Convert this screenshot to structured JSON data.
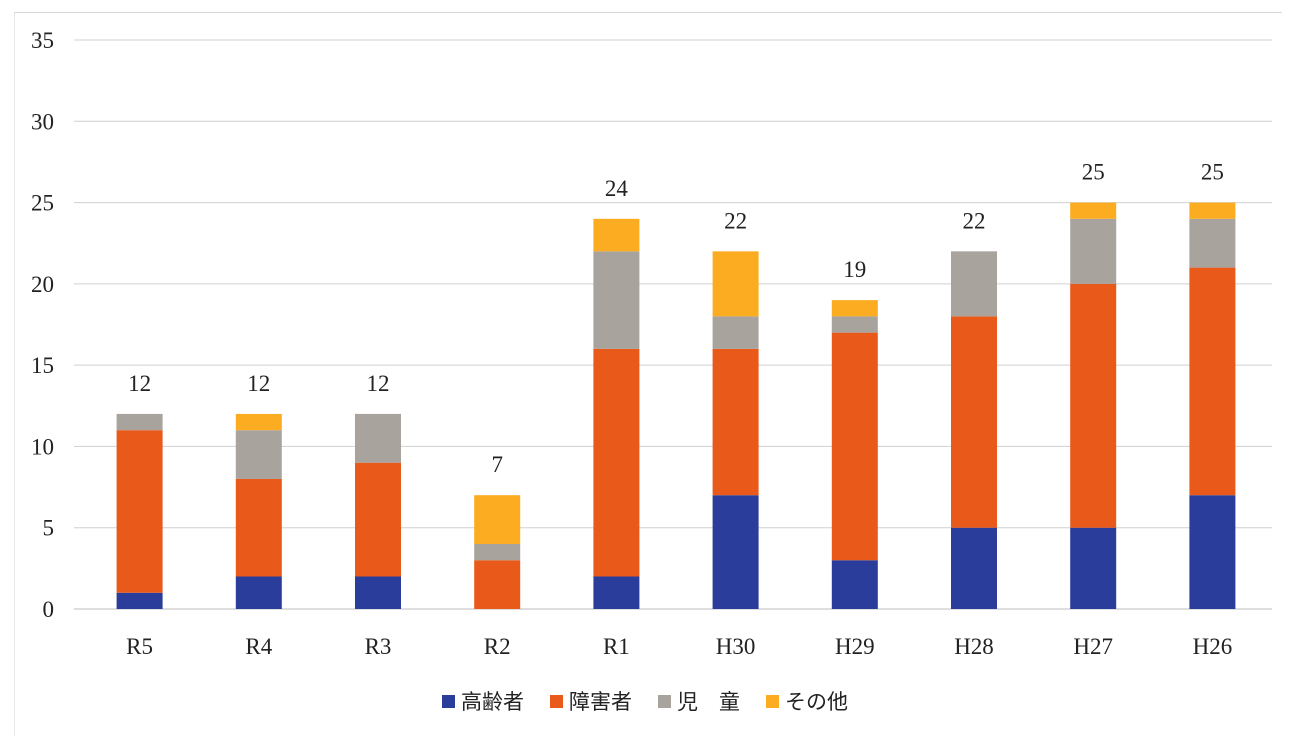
{
  "chart_data": {
    "type": "bar",
    "stacked": true,
    "categories": [
      "R5",
      "R4",
      "R3",
      "R2",
      "R1",
      "H30",
      "H29",
      "H28",
      "H27",
      "H26"
    ],
    "series": [
      {
        "name": "高齢者",
        "color": "#2b3d9b",
        "values": [
          1,
          2,
          2,
          0,
          2,
          7,
          3,
          5,
          5,
          7
        ]
      },
      {
        "name": "障害者",
        "color": "#e8591a",
        "values": [
          10,
          6,
          7,
          3,
          14,
          9,
          14,
          13,
          15,
          14
        ]
      },
      {
        "name": "児　童",
        "color": "#a8a39c",
        "values": [
          1,
          3,
          3,
          1,
          6,
          2,
          1,
          4,
          4,
          3
        ]
      },
      {
        "name": "その他",
        "color": "#fbac21",
        "values": [
          0,
          1,
          0,
          3,
          2,
          4,
          1,
          0,
          1,
          1
        ]
      }
    ],
    "totals": [
      12,
      12,
      12,
      7,
      24,
      22,
      19,
      22,
      25,
      25
    ],
    "ylim": [
      0,
      35
    ],
    "yticks": [
      0,
      5,
      10,
      15,
      20,
      25,
      30,
      35
    ],
    "grid": true,
    "legend": "bottom"
  }
}
